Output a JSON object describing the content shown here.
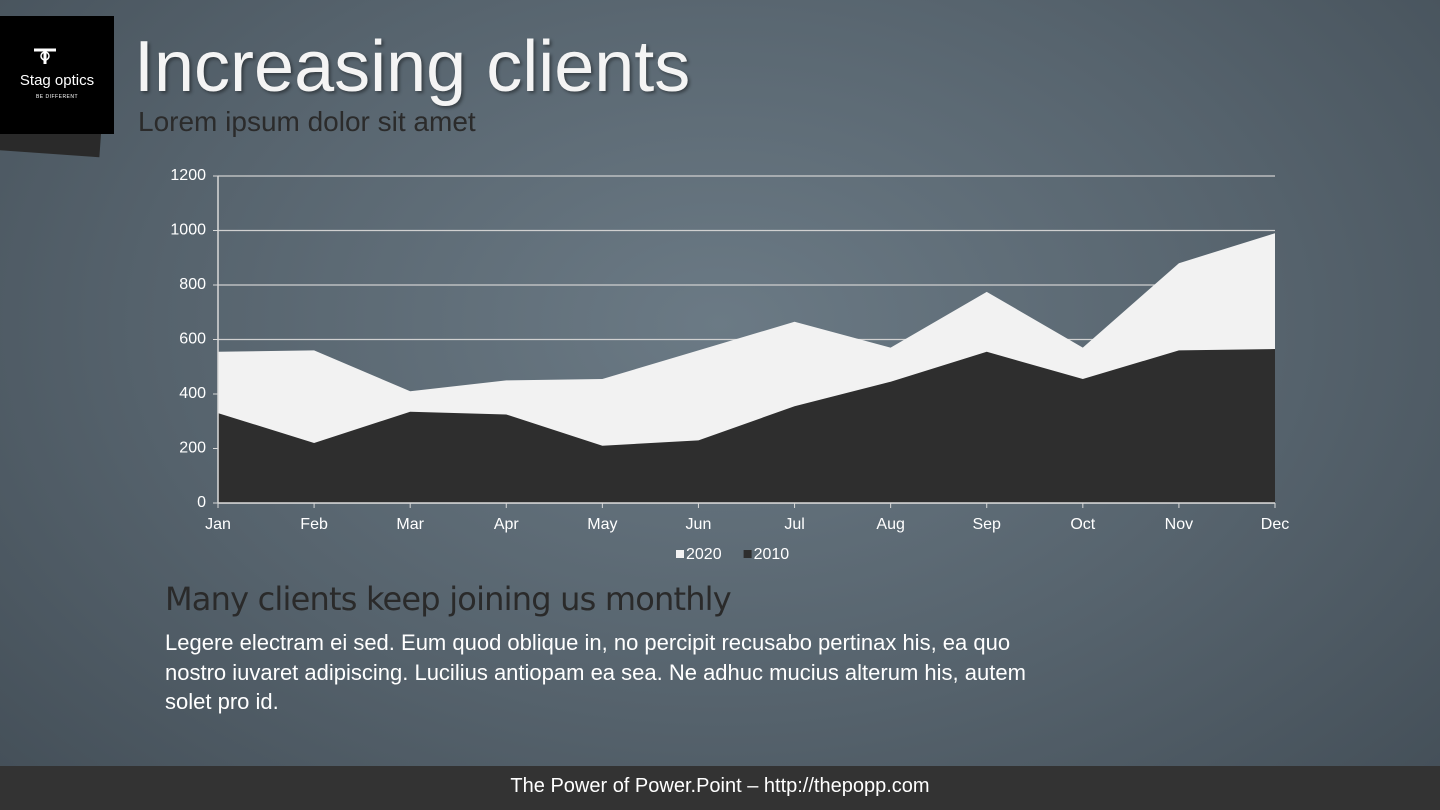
{
  "logo": {
    "name": "Stag optics",
    "tagline": "BE DIFFERENT"
  },
  "heading": "Increasing clients",
  "subheading": "Lorem ipsum dolor sit amet",
  "chart_data": {
    "type": "area",
    "categories": [
      "Jan",
      "Feb",
      "Mar",
      "Apr",
      "May",
      "Jun",
      "Jul",
      "Aug",
      "Sep",
      "Oct",
      "Nov",
      "Dec"
    ],
    "series": [
      {
        "name": "2020",
        "color": "#f2f2f2",
        "values": [
          555,
          560,
          410,
          450,
          455,
          560,
          665,
          570,
          775,
          570,
          880,
          990
        ]
      },
      {
        "name": "2010",
        "color": "#2e2e2e",
        "values": [
          330,
          220,
          335,
          325,
          210,
          230,
          355,
          445,
          555,
          455,
          560,
          565
        ]
      }
    ],
    "ylim": [
      0,
      1200
    ],
    "yticks": [
      0,
      200,
      400,
      600,
      800,
      1000,
      1200
    ],
    "grid": true,
    "legend": "bottom"
  },
  "section_title": "Many clients keep joining us monthly",
  "body": "Legere electram ei sed. Eum quod oblique in, no percipit recusabo pertinax his, ea quo nostro iuvaret adipiscing. Lucilius antiopam ea sea. Ne adhuc mucius alterum his, autem solet pro id.",
  "footer": "The Power of Power.Point – http://thepopp.com"
}
